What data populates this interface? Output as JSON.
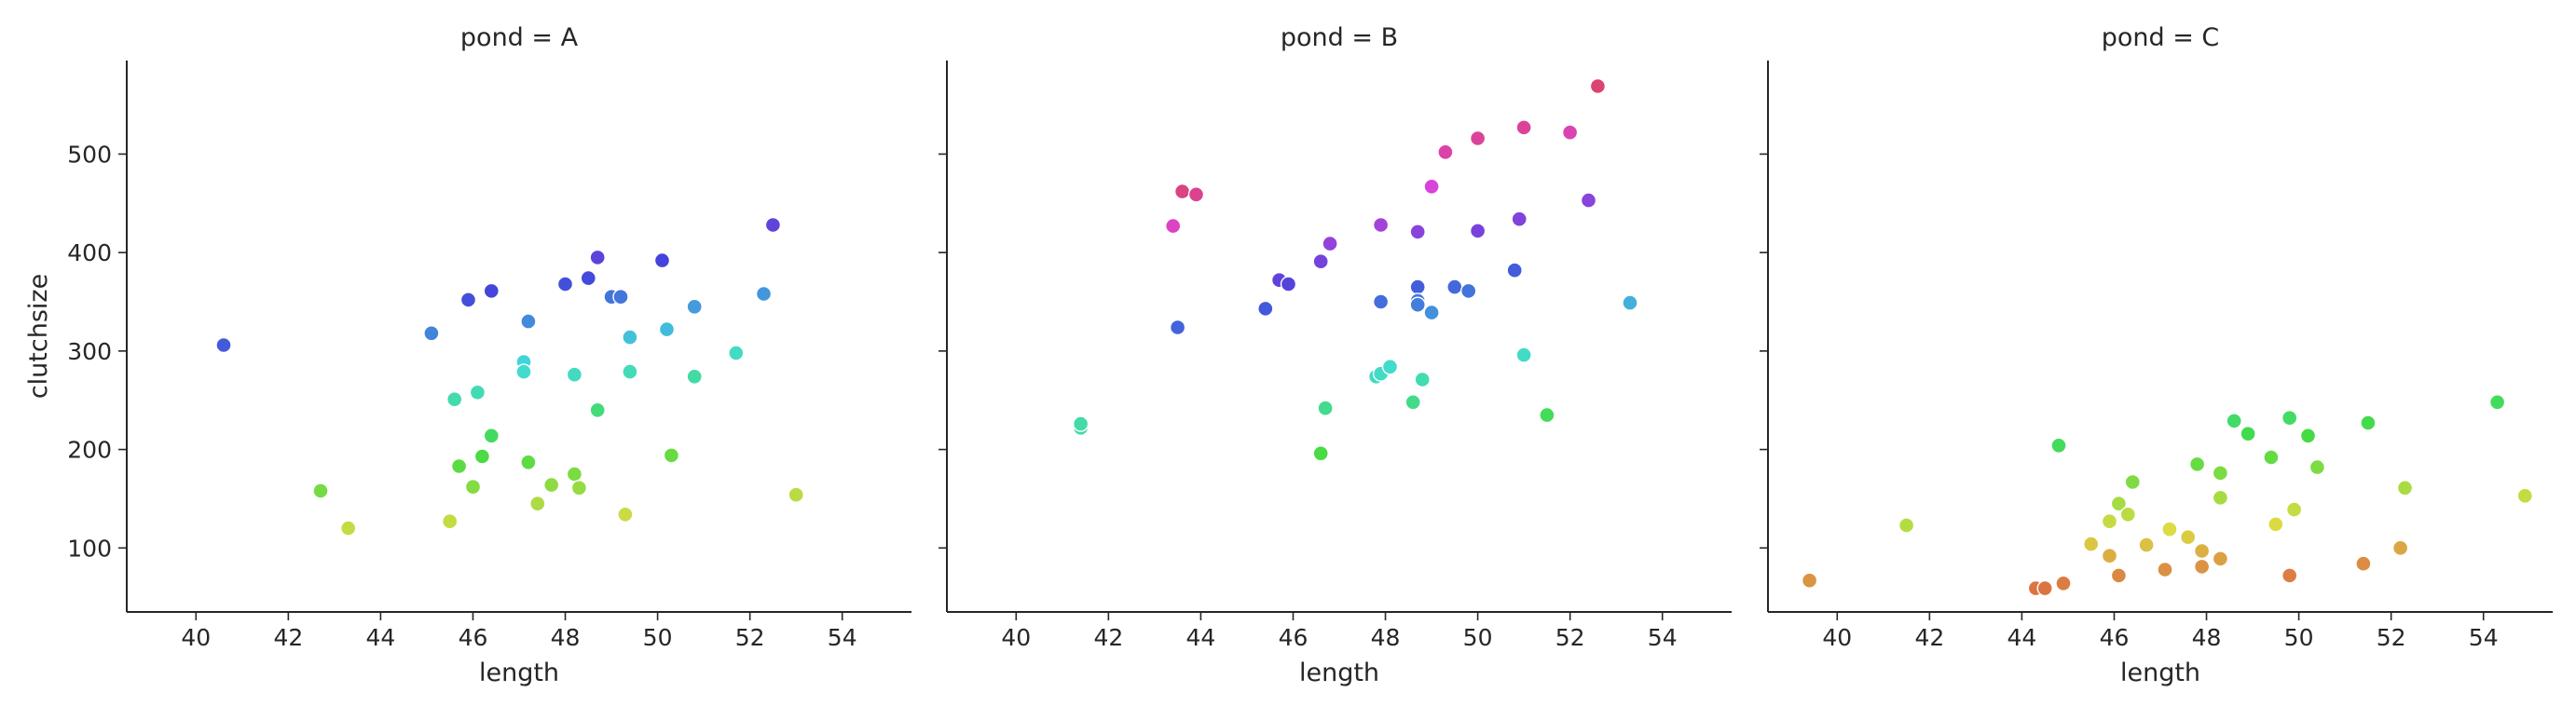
{
  "chart_data": {
    "type": "scatter",
    "xlabel": "length",
    "ylabel": "clutchsize",
    "xlim": [
      38.5,
      55.5
    ],
    "ylim": [
      35,
      595
    ],
    "xticks": [
      40,
      42,
      44,
      46,
      48,
      50,
      52,
      54
    ],
    "yticks": [
      100,
      200,
      300,
      400,
      500
    ],
    "grid": false,
    "color_encoding": "hue varies continuously with y/x ratio (orange → olive → green → teal → blue → purple → magenta → pink)",
    "panels": [
      {
        "title": "pond = A",
        "points": [
          [
            40.6,
            306
          ],
          [
            42.7,
            158
          ],
          [
            43.3,
            120
          ],
          [
            45.1,
            318
          ],
          [
            45.5,
            127
          ],
          [
            45.6,
            251
          ],
          [
            45.7,
            183
          ],
          [
            45.9,
            352
          ],
          [
            46.0,
            162
          ],
          [
            46.1,
            258
          ],
          [
            46.2,
            193
          ],
          [
            46.4,
            361
          ],
          [
            46.4,
            214
          ],
          [
            47.1,
            289
          ],
          [
            47.1,
            279
          ],
          [
            47.2,
            330
          ],
          [
            47.2,
            187
          ],
          [
            47.4,
            145
          ],
          [
            47.7,
            164
          ],
          [
            48.0,
            368
          ],
          [
            48.2,
            175
          ],
          [
            48.2,
            276
          ],
          [
            48.3,
            161
          ],
          [
            48.5,
            374
          ],
          [
            48.7,
            395
          ],
          [
            48.7,
            240
          ],
          [
            49.0,
            355
          ],
          [
            49.2,
            355
          ],
          [
            49.3,
            134
          ],
          [
            49.4,
            314
          ],
          [
            49.4,
            279
          ],
          [
            50.1,
            392
          ],
          [
            50.2,
            322
          ],
          [
            50.3,
            194
          ],
          [
            50.8,
            345
          ],
          [
            50.8,
            274
          ],
          [
            51.7,
            298
          ],
          [
            52.3,
            358
          ],
          [
            52.5,
            428
          ],
          [
            53.0,
            154
          ]
        ]
      },
      {
        "title": "pond = B",
        "points": [
          [
            41.4,
            222
          ],
          [
            41.4,
            226
          ],
          [
            43.4,
            427
          ],
          [
            43.5,
            324
          ],
          [
            43.6,
            462
          ],
          [
            43.9,
            459
          ],
          [
            45.4,
            343
          ],
          [
            45.7,
            372
          ],
          [
            45.9,
            368
          ],
          [
            46.6,
            196
          ],
          [
            46.6,
            391
          ],
          [
            46.7,
            242
          ],
          [
            46.8,
            409
          ],
          [
            47.8,
            274
          ],
          [
            47.9,
            428
          ],
          [
            47.9,
            350
          ],
          [
            47.9,
            277
          ],
          [
            48.1,
            284
          ],
          [
            48.6,
            248
          ],
          [
            48.7,
            365
          ],
          [
            48.7,
            421
          ],
          [
            48.7,
            351
          ],
          [
            48.7,
            347
          ],
          [
            48.8,
            271
          ],
          [
            49.0,
            467
          ],
          [
            49.0,
            339
          ],
          [
            49.3,
            502
          ],
          [
            49.5,
            365
          ],
          [
            49.8,
            361
          ],
          [
            50.0,
            422
          ],
          [
            50.0,
            516
          ],
          [
            50.8,
            382
          ],
          [
            50.9,
            434
          ],
          [
            51.0,
            527
          ],
          [
            51.0,
            296
          ],
          [
            51.5,
            235
          ],
          [
            52.0,
            522
          ],
          [
            52.4,
            453
          ],
          [
            52.6,
            569
          ],
          [
            53.3,
            349
          ]
        ]
      },
      {
        "title": "pond = C",
        "points": [
          [
            39.4,
            67
          ],
          [
            41.5,
            123
          ],
          [
            44.3,
            59
          ],
          [
            44.5,
            59
          ],
          [
            44.8,
            204
          ],
          [
            44.9,
            64
          ],
          [
            45.5,
            104
          ],
          [
            45.9,
            127
          ],
          [
            45.9,
            92
          ],
          [
            46.1,
            72
          ],
          [
            46.1,
            145
          ],
          [
            46.3,
            134
          ],
          [
            46.4,
            167
          ],
          [
            46.7,
            103
          ],
          [
            47.1,
            78
          ],
          [
            47.2,
            119
          ],
          [
            47.6,
            111
          ],
          [
            47.8,
            185
          ],
          [
            47.9,
            97
          ],
          [
            47.9,
            81
          ],
          [
            48.3,
            176
          ],
          [
            48.3,
            151
          ],
          [
            48.3,
            89
          ],
          [
            48.6,
            229
          ],
          [
            48.9,
            216
          ],
          [
            49.4,
            192
          ],
          [
            49.5,
            124
          ],
          [
            49.8,
            72
          ],
          [
            49.8,
            232
          ],
          [
            49.9,
            139
          ],
          [
            50.2,
            214
          ],
          [
            50.4,
            182
          ],
          [
            51.4,
            84
          ],
          [
            51.5,
            227
          ],
          [
            52.2,
            100
          ],
          [
            52.3,
            161
          ],
          [
            54.3,
            248
          ],
          [
            54.9,
            153
          ]
        ]
      }
    ]
  }
}
